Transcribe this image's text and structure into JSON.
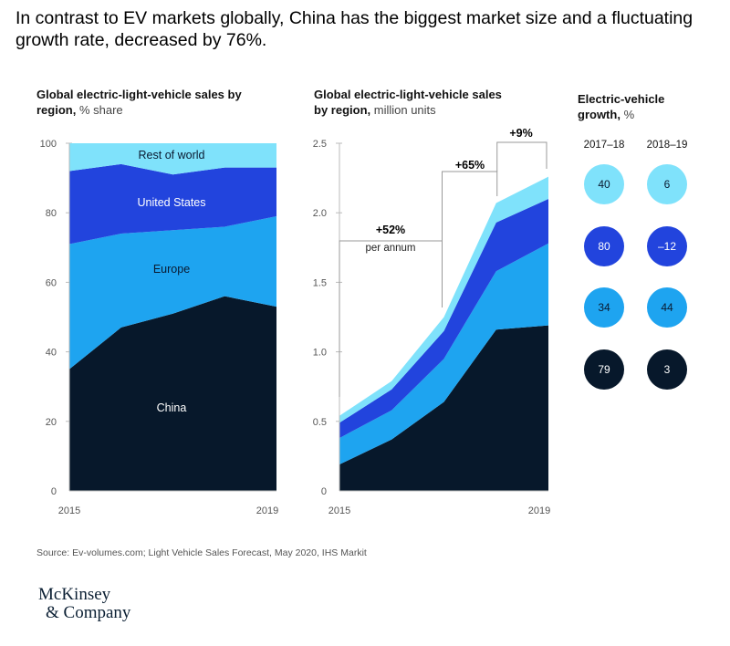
{
  "headline": "In contrast to EV markets globally, China has the biggest market size and a fluctuating growth rate, decreased by 76%.",
  "colors": {
    "china": "#07182b",
    "europe": "#1ea4f0",
    "us": "#2244dd",
    "rest": "#7fe2fb",
    "axis": "#bbbbbb",
    "text": "#333333"
  },
  "chart_data": [
    {
      "type": "area",
      "title_bold": "Global electric-light-vehicle sales by region,",
      "title_rest": "% share",
      "x": [
        2015,
        2016,
        2017,
        2018,
        2019
      ],
      "x_tick_labels": [
        "2015",
        "2019"
      ],
      "ylim": [
        0,
        100
      ],
      "y_ticks": [
        0,
        20,
        40,
        60,
        80,
        100
      ],
      "stacked": true,
      "series": [
        {
          "name": "China",
          "label": "China",
          "values": [
            35,
            47,
            51,
            56,
            53
          ]
        },
        {
          "name": "Europe",
          "label": "Europe",
          "values": [
            36,
            27,
            24,
            20,
            26
          ]
        },
        {
          "name": "United States",
          "label": "United States",
          "values": [
            21,
            20,
            16,
            17,
            14
          ]
        },
        {
          "name": "Rest of world",
          "label": "Rest of world",
          "values": [
            8,
            6,
            9,
            7,
            7
          ]
        }
      ]
    },
    {
      "type": "area",
      "title_bold": "Global electric-light-vehicle sales by region,",
      "title_rest": "million units",
      "x": [
        2015,
        2016,
        2017,
        2018,
        2019
      ],
      "x_tick_labels": [
        "2015",
        "2019"
      ],
      "ylim": [
        0,
        2.5
      ],
      "y_ticks": [
        0,
        0.5,
        1.0,
        1.5,
        2.0,
        2.5
      ],
      "y_tick_labels": [
        "0",
        "0.5",
        "1.0",
        "1.5",
        "2.0",
        "2.5"
      ],
      "stacked": true,
      "series": [
        {
          "name": "China",
          "values": [
            0.19,
            0.37,
            0.64,
            1.16,
            1.19
          ]
        },
        {
          "name": "Europe",
          "values": [
            0.19,
            0.21,
            0.31,
            0.42,
            0.59
          ]
        },
        {
          "name": "United States",
          "values": [
            0.11,
            0.15,
            0.2,
            0.35,
            0.32
          ]
        },
        {
          "name": "Rest of world",
          "values": [
            0.05,
            0.06,
            0.1,
            0.14,
            0.16
          ]
        }
      ],
      "annotations": [
        {
          "label": "+52%",
          "sublabel": "per annum",
          "from": 2015,
          "to": 2017
        },
        {
          "label": "+65%",
          "from": 2017,
          "to": 2018
        },
        {
          "label": "+9%",
          "from": 2018,
          "to": 2019
        }
      ]
    },
    {
      "type": "table",
      "title_bold": "Electric-vehicle growth,",
      "title_rest": "%",
      "columns": [
        "2017–18",
        "2018–19"
      ],
      "rows": [
        {
          "region": "Rest of world",
          "values": [
            "40",
            "6"
          ]
        },
        {
          "region": "United States",
          "values": [
            "80",
            "–12"
          ]
        },
        {
          "region": "Europe",
          "values": [
            "34",
            "44"
          ]
        },
        {
          "region": "China",
          "values": [
            "79",
            "3"
          ]
        }
      ]
    }
  ],
  "source": "Source: Ev-volumes.com; Light Vehicle Sales Forecast, May 2020, IHS Markit",
  "logo": {
    "line1": "McKinsey",
    "line2": "& Company"
  }
}
